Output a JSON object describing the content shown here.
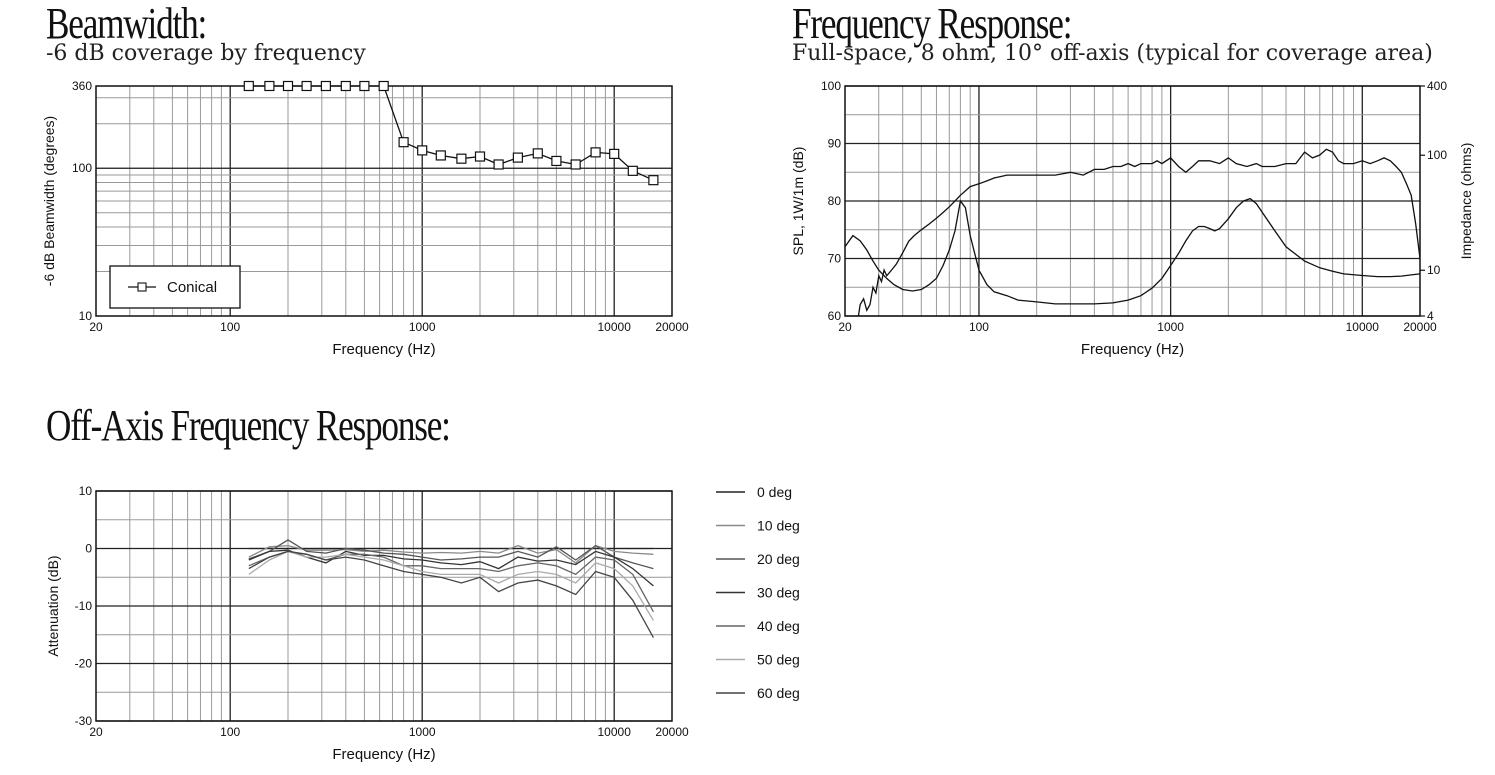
{
  "beamwidth": {
    "title": "Beamwidth:",
    "subtitle": "-6 dB coverage by frequency"
  },
  "freq_response": {
    "title": "Frequency Response:",
    "subtitle": "Full-space, 8 ohm, 10° off-axis (typical for coverage area)"
  },
  "offaxis": {
    "title": "Off-Axis Frequency Response:"
  },
  "chart_data": [
    {
      "type": "line",
      "title": "Beamwidth:",
      "subtitle": "-6 dB coverage by frequency",
      "xlabel": "Frequency (Hz)",
      "ylabel": "-6 dB Beamwidth (degrees)",
      "x_scale": "log",
      "y_scale": "log",
      "xlim": [
        20,
        20000
      ],
      "ylim": [
        10,
        360
      ],
      "x_ticks": [
        "20",
        "100",
        "1000",
        "10000",
        "20000"
      ],
      "y_ticks": [
        "10",
        "100",
        "360"
      ],
      "grid": true,
      "legend": "bottom-left",
      "x": [
        125,
        160,
        200,
        250,
        315,
        400,
        500,
        630,
        800,
        1000,
        1250,
        1600,
        2000,
        2500,
        3150,
        4000,
        5000,
        6300,
        8000,
        10000,
        12500,
        16000
      ],
      "series": [
        {
          "name": "Conical",
          "values": [
            360,
            360,
            360,
            360,
            360,
            360,
            360,
            360,
            150,
            132,
            122,
            116,
            120,
            106,
            118,
            126,
            112,
            106,
            128,
            125,
            96,
            83
          ]
        }
      ]
    },
    {
      "type": "line",
      "title": "Frequency Response:",
      "subtitle": "Full-space, 8 ohm, 10° off-axis (typical for coverage area)",
      "xlabel": "Frequency (Hz)",
      "ylabel": "SPL, 1W/1m (dB)",
      "y2label": "Impedance (ohms)",
      "x_scale": "log",
      "xlim": [
        20,
        20000
      ],
      "ylim": [
        60,
        100
      ],
      "y2_scale": "log",
      "y2lim": [
        4,
        400
      ],
      "x_ticks": [
        "20",
        "100",
        "1000",
        "10000",
        "20000"
      ],
      "y_ticks": [
        "60",
        "70",
        "80",
        "90",
        "100"
      ],
      "y2_ticks": [
        "4",
        "10",
        "100",
        "400"
      ],
      "grid": true,
      "series": [
        {
          "axis": "left",
          "x": [
            20,
            21,
            22,
            23,
            24,
            25,
            26,
            27,
            28,
            29,
            30,
            31,
            32,
            33,
            35,
            37,
            40,
            43,
            46,
            50,
            55,
            60,
            65,
            70,
            75,
            80,
            90,
            100,
            110,
            120,
            140,
            160,
            180,
            200,
            250,
            300,
            350,
            400,
            450,
            500,
            550,
            600,
            650,
            700,
            800,
            850,
            900,
            1000,
            1100,
            1200,
            1300,
            1400,
            1500,
            1600,
            1800,
            2000,
            2200,
            2500,
            2800,
            3000,
            3500,
            4000,
            4500,
            5000,
            5500,
            6000,
            6500,
            7000,
            7500,
            8000,
            9000,
            10000,
            11000,
            12000,
            13000,
            14000,
            15000,
            16000,
            17000,
            18000,
            19000,
            20000
          ],
          "values": [
            55,
            55,
            56,
            58,
            62,
            63,
            61,
            62,
            65,
            64,
            67,
            66,
            68,
            67,
            68,
            69,
            71,
            73,
            74,
            75,
            76,
            77,
            78,
            79,
            80,
            81,
            82.5,
            83,
            83.5,
            84,
            84.5,
            84.5,
            84.5,
            84.5,
            84.5,
            85,
            84.5,
            85.5,
            85.5,
            86,
            86,
            86.5,
            86,
            86.5,
            86.5,
            87,
            86.5,
            87.5,
            86,
            85,
            86,
            87,
            87,
            87,
            86.5,
            87.5,
            86.5,
            86,
            86.5,
            86,
            86,
            86.5,
            86.5,
            88.5,
            87.5,
            88,
            89,
            88.5,
            87,
            86.5,
            86.5,
            87,
            86.5,
            87,
            87.5,
            87,
            86,
            85,
            83,
            81,
            76,
            70
          ]
        },
        {
          "axis": "right",
          "x": [
            20,
            22,
            24,
            26,
            28,
            30,
            33,
            36,
            40,
            45,
            50,
            55,
            60,
            65,
            70,
            75,
            80,
            85,
            90,
            95,
            100,
            110,
            120,
            140,
            160,
            200,
            250,
            300,
            350,
            400,
            500,
            600,
            700,
            800,
            900,
            1000,
            1100,
            1200,
            1300,
            1400,
            1500,
            1600,
            1700,
            1800,
            2000,
            2200,
            2400,
            2600,
            2800,
            3000,
            3500,
            4000,
            5000,
            6000,
            7000,
            8000,
            10000,
            12000,
            14000,
            16000,
            18000,
            20000
          ],
          "values": [
            16,
            20,
            18,
            15,
            12,
            10,
            8.5,
            7.5,
            6.8,
            6.6,
            6.8,
            7.5,
            8.5,
            11,
            15,
            22,
            40,
            35,
            20,
            14,
            10,
            7.5,
            6.5,
            6,
            5.5,
            5.3,
            5.1,
            5.1,
            5.1,
            5.1,
            5.2,
            5.5,
            6,
            7,
            8.5,
            11,
            14,
            18,
            22,
            24,
            24,
            23,
            22,
            23,
            28,
            35,
            40,
            42,
            38,
            32,
            22,
            16,
            12,
            10.5,
            9.8,
            9.3,
            9,
            8.8,
            8.8,
            8.9,
            9.1,
            9.3
          ]
        }
      ]
    },
    {
      "type": "line",
      "title": "Off-Axis Frequency Response:",
      "xlabel": "Frequency (Hz)",
      "ylabel": "Attenuation (dB)",
      "x_scale": "log",
      "xlim": [
        20,
        20000
      ],
      "ylim": [
        -30,
        10
      ],
      "x_ticks": [
        "20",
        "100",
        "1000",
        "10000",
        "20000"
      ],
      "y_ticks": [
        "-30",
        "-20",
        "-10",
        "0",
        "10"
      ],
      "grid": true,
      "legend": "right",
      "x": [
        125,
        160,
        200,
        250,
        315,
        400,
        500,
        630,
        800,
        1000,
        1250,
        1600,
        2000,
        2500,
        3150,
        4000,
        5000,
        6300,
        8000,
        10000,
        12500,
        16000
      ],
      "series": [
        {
          "name": "0 deg",
          "values": [
            0,
            0,
            0,
            0,
            0,
            0,
            0,
            0,
            0,
            0,
            0,
            0,
            0,
            0,
            0,
            0,
            0,
            0,
            0,
            0,
            0,
            0
          ]
        },
        {
          "name": "10 deg",
          "values": [
            -1.5,
            0.3,
            0.5,
            -0.3,
            -0.3,
            -0.2,
            -0.5,
            -0.3,
            -0.6,
            -0.8,
            -0.7,
            -0.8,
            -0.5,
            -0.8,
            0.5,
            -0.8,
            -0.2,
            -2.5,
            0.5,
            -0.5,
            -0.8,
            -1
          ]
        },
        {
          "name": "20 deg",
          "values": [
            -1.8,
            -0.5,
            1.5,
            -0.5,
            -0.8,
            0,
            -0.3,
            -0.8,
            -1,
            -1.5,
            -2,
            -1.8,
            -1.5,
            -1.5,
            -0.5,
            -1.5,
            0.3,
            -2,
            0.5,
            -1.5,
            -2.5,
            -3.5
          ]
        },
        {
          "name": "30 deg",
          "values": [
            -2,
            -0.5,
            -0.3,
            -1.5,
            -2.5,
            -0.5,
            -1.2,
            -1.2,
            -1.8,
            -2,
            -2.5,
            -2.8,
            -2.3,
            -3.5,
            -1.5,
            -2.2,
            -2,
            -2.8,
            -0.5,
            -1.5,
            -3.5,
            -6.5
          ]
        },
        {
          "name": "40 deg",
          "values": [
            -3,
            -1.5,
            -0.5,
            -1,
            -2,
            -1,
            -1,
            -1.5,
            -3,
            -3,
            -3.5,
            -3.5,
            -3.5,
            -4,
            -3,
            -2.5,
            -3,
            -4.5,
            -1.5,
            -2,
            -4.5,
            -11
          ]
        },
        {
          "name": "50 deg",
          "values": [
            -4.5,
            -2,
            -0.5,
            -1.5,
            -1.5,
            -1,
            -1.5,
            -2,
            -3,
            -4,
            -4.5,
            -4.5,
            -4.5,
            -6,
            -4.5,
            -4,
            -4.5,
            -6,
            -2.5,
            -3.5,
            -6.5,
            -12.5
          ]
        },
        {
          "name": "60 deg",
          "values": [
            -3.5,
            -1.5,
            -0.5,
            -1,
            -2,
            -1.5,
            -2,
            -3,
            -4,
            -4.5,
            -5,
            -6,
            -5,
            -7.5,
            -6,
            -5.5,
            -6.5,
            -8,
            -4,
            -5,
            -9,
            -15.5
          ]
        }
      ]
    }
  ]
}
